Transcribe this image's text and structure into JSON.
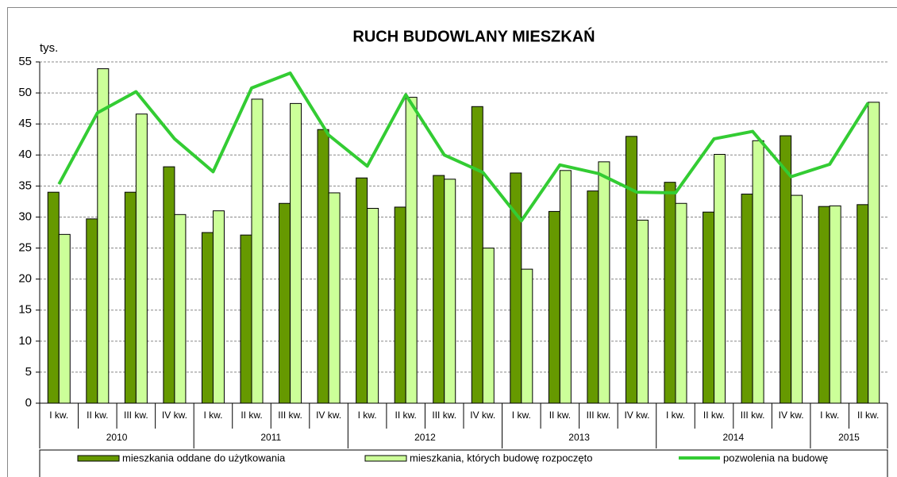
{
  "chart_data": {
    "type": "bar",
    "title": "RUCH BUDOWLANY MIESZKAŃ",
    "y_label": "tys.",
    "groups": [
      {
        "name": "2010",
        "categories": [
          "I kw.",
          "II kw.",
          "III kw.",
          "IV kw."
        ]
      },
      {
        "name": "2011",
        "categories": [
          "I kw.",
          "II kw.",
          "III kw.",
          "IV kw."
        ]
      },
      {
        "name": "2012",
        "categories": [
          "I kw.",
          "II kw.",
          "III kw.",
          "IV kw."
        ]
      },
      {
        "name": "2013",
        "categories": [
          "I kw.",
          "II kw.",
          "III kw.",
          "IV kw."
        ]
      },
      {
        "name": "2014",
        "categories": [
          "I kw.",
          "II kw.",
          "III kw.",
          "IV kw."
        ]
      },
      {
        "name": "2015",
        "categories": [
          "I kw.",
          "II kw."
        ]
      }
    ],
    "series": [
      {
        "name": "mieszkania oddane do użytkowania",
        "type": "bar",
        "color": "#669900",
        "values": [
          34.0,
          29.7,
          34.0,
          38.1,
          27.5,
          27.1,
          32.2,
          44.1,
          36.3,
          31.6,
          36.7,
          47.8,
          37.1,
          30.9,
          34.2,
          43.0,
          35.6,
          30.8,
          33.7,
          43.1,
          31.7,
          32.0
        ]
      },
      {
        "name": "mieszkania, których budowę rozpoczęto",
        "type": "bar",
        "color": "#ccff99",
        "values": [
          27.2,
          53.9,
          46.6,
          30.4,
          31.0,
          49.0,
          48.3,
          33.9,
          31.4,
          49.3,
          36.1,
          25.0,
          21.6,
          37.5,
          38.9,
          29.5,
          32.2,
          40.1,
          42.3,
          33.5,
          31.8,
          48.5
        ]
      },
      {
        "name": "pozwolenia na budowę",
        "type": "line",
        "color": "#33cc33",
        "values": [
          35.3,
          46.8,
          50.2,
          42.6,
          37.3,
          50.8,
          53.2,
          43.2,
          38.2,
          49.7,
          40.0,
          37.2,
          29.4,
          38.4,
          37.0,
          34.0,
          33.9,
          42.6,
          43.8,
          36.5,
          38.5,
          48.4
        ]
      }
    ],
    "ylim": [
      0,
      55
    ],
    "yticks": [
      0,
      5,
      10,
      15,
      20,
      25,
      30,
      35,
      40,
      45,
      50,
      55
    ],
    "grid": true
  }
}
